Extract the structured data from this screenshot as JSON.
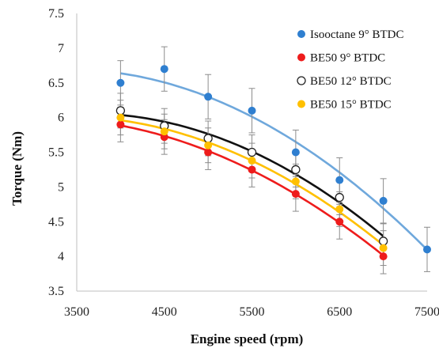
{
  "chart_data": {
    "type": "scatter",
    "xlabel": "Engine speed (rpm)",
    "ylabel": "Torque (Nm)",
    "xlim": [
      3500,
      7500
    ],
    "ylim": [
      3.5,
      7.5
    ],
    "xticks": [
      "3500",
      "4500",
      "5500",
      "6500",
      "7500"
    ],
    "yticks": [
      "3.5",
      "4",
      "4.5",
      "5",
      "5.5",
      "6",
      "6.5",
      "7",
      "7.5"
    ],
    "grid": false,
    "legend": "top-right",
    "trendlines": "quadratic",
    "series": [
      {
        "name": "Isooctane 9° BTDC",
        "color": "#2f7fd0",
        "line_color": "#6fa8dc",
        "marker": "filled",
        "x": [
          4000,
          4500,
          5000,
          5500,
          6000,
          6500,
          7000,
          7500
        ],
        "y": [
          6.5,
          6.7,
          6.3,
          6.1,
          5.5,
          5.1,
          4.8,
          4.1
        ],
        "err": [
          0.32,
          0.32,
          0.32,
          0.32,
          0.32,
          0.32,
          0.32,
          0.32
        ]
      },
      {
        "name": "BE50 9° BTDC",
        "color": "#ee1c1c",
        "line_color": "#ee1c1c",
        "marker": "filled",
        "x": [
          4000,
          4500,
          5000,
          5500,
          6000,
          6500,
          7000
        ],
        "y": [
          5.9,
          5.72,
          5.5,
          5.25,
          4.9,
          4.5,
          4.0
        ],
        "err": [
          0.25,
          0.25,
          0.25,
          0.25,
          0.25,
          0.25,
          0.25
        ]
      },
      {
        "name": "BE50 12° BTDC",
        "color": "#222222",
        "line_color": "#111111",
        "marker": "hollow",
        "x": [
          4000,
          4500,
          5000,
          5500,
          6000,
          6500,
          7000
        ],
        "y": [
          6.1,
          5.88,
          5.7,
          5.5,
          5.25,
          4.85,
          4.22
        ],
        "err": [
          0.25,
          0.25,
          0.25,
          0.25,
          0.25,
          0.25,
          0.25
        ]
      },
      {
        "name": "BE50 15° BTDC",
        "color": "#ffc000",
        "line_color": "#ffc000",
        "marker": "filled",
        "x": [
          4000,
          4500,
          5000,
          5500,
          6000,
          6500,
          7000
        ],
        "y": [
          6.0,
          5.8,
          5.6,
          5.38,
          5.08,
          4.68,
          4.12
        ],
        "err": [
          0.25,
          0.25,
          0.25,
          0.25,
          0.25,
          0.25,
          0.25
        ]
      }
    ]
  }
}
